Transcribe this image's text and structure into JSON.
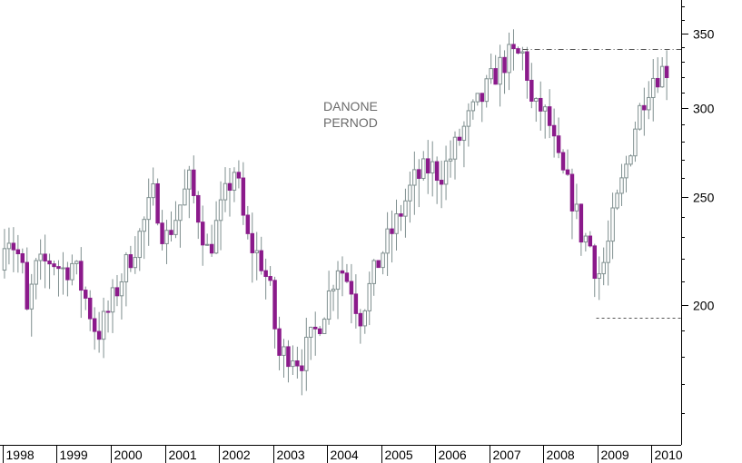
{
  "chart_data": {
    "type": "candlestick",
    "title": "",
    "xlabel": "",
    "ylabel": "",
    "annotation_lines": [
      "DANONE",
      "PERNOD"
    ],
    "x_axis": {
      "tick_labels": [
        "1998",
        "1999",
        "2000",
        "2001",
        "2002",
        "2003",
        "2004",
        "2005",
        "2006",
        "2007",
        "2008",
        "2009",
        "2010"
      ],
      "range": [
        1997.95,
        2010.55
      ]
    },
    "y_axis": {
      "scale": "log",
      "position": "right",
      "tick_values": [
        200,
        250,
        300,
        350
      ],
      "tick_labels": [
        "200",
        "250",
        "300",
        "350"
      ],
      "range": [
        150,
        375
      ]
    },
    "grid": false,
    "colors": {
      "up": "#ffffff",
      "up_outline": "#7f8f8f",
      "down": "#8b1a8b",
      "wick": "#7f8f8f",
      "axis": "#000000",
      "reference_line": "#555555"
    },
    "reference_lines": [
      {
        "style": "dash-dot",
        "y": 339,
        "x_start": 2007.62,
        "x_end": 2010.55
      },
      {
        "style": "dashed",
        "y": 195,
        "x_start": 2008.98,
        "x_end": 2010.55
      }
    ],
    "anchors": [
      [
        1997.95,
        215
      ],
      [
        1998.05,
        235
      ],
      [
        1998.35,
        218
      ],
      [
        1998.45,
        196
      ],
      [
        1998.6,
        215
      ],
      [
        1998.9,
        220
      ],
      [
        1999.1,
        215
      ],
      [
        1999.3,
        218
      ],
      [
        1999.5,
        205
      ],
      [
        1999.75,
        188
      ],
      [
        1999.95,
        197
      ],
      [
        2000.3,
        218
      ],
      [
        2000.55,
        232
      ],
      [
        2000.8,
        252
      ],
      [
        2001.0,
        228
      ],
      [
        2001.2,
        240
      ],
      [
        2001.45,
        258
      ],
      [
        2001.65,
        238
      ],
      [
        2001.8,
        222
      ],
      [
        2002.0,
        240
      ],
      [
        2002.3,
        266
      ],
      [
        2002.5,
        230
      ],
      [
        2002.8,
        218
      ],
      [
        2002.95,
        205
      ],
      [
        2003.1,
        180
      ],
      [
        2003.35,
        182
      ],
      [
        2003.5,
        178
      ],
      [
        2003.8,
        190
      ],
      [
        2004.0,
        202
      ],
      [
        2004.2,
        218
      ],
      [
        2004.45,
        208
      ],
      [
        2004.6,
        195
      ],
      [
        2004.75,
        205
      ],
      [
        2005.0,
        222
      ],
      [
        2005.3,
        238
      ],
      [
        2005.6,
        258
      ],
      [
        2005.9,
        266
      ],
      [
        2006.1,
        262
      ],
      [
        2006.3,
        272
      ],
      [
        2006.6,
        292
      ],
      [
        2006.9,
        308
      ],
      [
        2007.15,
        325
      ],
      [
        2007.35,
        333
      ],
      [
        2007.65,
        335
      ],
      [
        2007.8,
        298
      ],
      [
        2007.95,
        300
      ],
      [
        2008.1,
        292
      ],
      [
        2008.25,
        270
      ],
      [
        2008.35,
        262
      ],
      [
        2008.55,
        248
      ],
      [
        2008.7,
        232
      ],
      [
        2008.85,
        228
      ],
      [
        2009.0,
        212
      ],
      [
        2009.15,
        220
      ],
      [
        2009.3,
        240
      ],
      [
        2009.5,
        262
      ],
      [
        2009.7,
        290
      ],
      [
        2009.9,
        312
      ],
      [
        2010.05,
        322
      ],
      [
        2010.25,
        325
      ],
      [
        2010.35,
        328
      ]
    ],
    "candles_per_year": 12
  }
}
